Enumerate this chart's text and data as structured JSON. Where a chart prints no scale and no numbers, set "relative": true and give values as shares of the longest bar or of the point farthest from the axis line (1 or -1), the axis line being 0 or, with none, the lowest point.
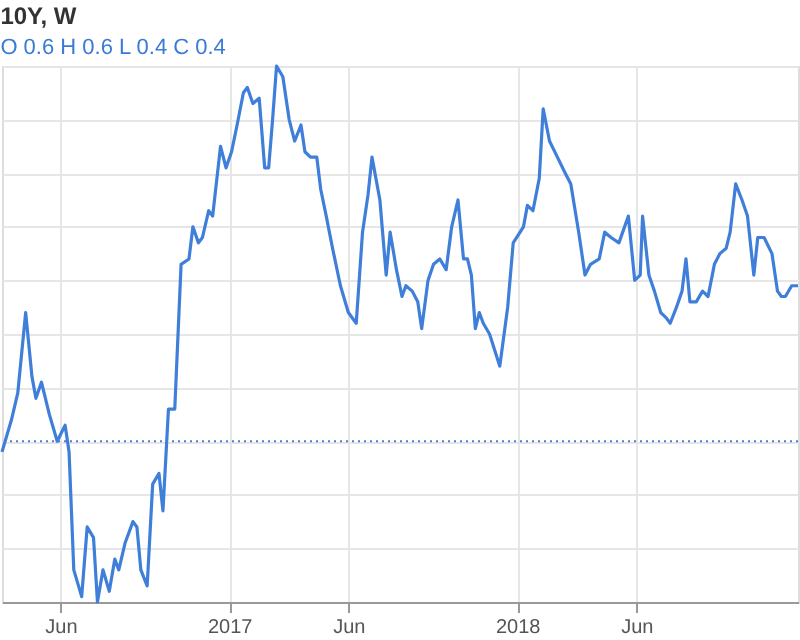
{
  "chart_data": {
    "type": "line",
    "title": "10Y, W",
    "annotations": [
      "O 0.6 H 0.6 L 0.4 C 0.4"
    ],
    "relative": true,
    "grid": true,
    "marker": "none",
    "line_style": "solid",
    "xlim": [
      "2016-03-19",
      "2018-12-23"
    ],
    "xticks": [
      {
        "value": "2016-06-01",
        "label": "Jun"
      },
      {
        "value": "2017-01-01",
        "label": "2017"
      },
      {
        "value": "2017-06-01",
        "label": "Jun"
      },
      {
        "value": "2018-01-01",
        "label": "2018"
      },
      {
        "value": "2018-06-01",
        "label": "Jun"
      }
    ],
    "ref_lines": [
      {
        "axis": "y",
        "value": 0.3,
        "label": null,
        "color": "#4a7fd6",
        "line_style": "dotted"
      }
    ],
    "series": [
      {
        "color": "#3f7fd9",
        "x": [
          "2016-03-19",
          "2016-03-31",
          "2016-04-08",
          "2016-04-18",
          "2016-04-26",
          "2016-05-01",
          "2016-05-08",
          "2016-05-18",
          "2016-05-28",
          "2016-06-07",
          "2016-06-12",
          "2016-06-18",
          "2016-06-28",
          "2016-07-05",
          "2016-07-13",
          "2016-07-18",
          "2016-07-25",
          "2016-08-02",
          "2016-08-09",
          "2016-08-14",
          "2016-08-22",
          "2016-09-01",
          "2016-09-06",
          "2016-09-11",
          "2016-09-19",
          "2016-09-26",
          "2016-10-04",
          "2016-10-09",
          "2016-10-16",
          "2016-10-24",
          "2016-11-01",
          "2016-11-11",
          "2016-11-16",
          "2016-11-23",
          "2016-11-28",
          "2016-12-06",
          "2016-12-11",
          "2016-12-21",
          "2016-12-28",
          "2017-01-04",
          "2017-01-11",
          "2017-01-19",
          "2017-01-24",
          "2017-01-31",
          "2017-02-08",
          "2017-02-15",
          "2017-02-20",
          "2017-02-25",
          "2017-03-02",
          "2017-03-10",
          "2017-03-18",
          "2017-03-25",
          "2017-04-02",
          "2017-04-07",
          "2017-04-14",
          "2017-04-22",
          "2017-04-27",
          "2017-05-04",
          "2017-05-12",
          "2017-05-22",
          "2017-06-01",
          "2017-06-11",
          "2017-06-19",
          "2017-06-26",
          "2017-07-01",
          "2017-07-11",
          "2017-07-19",
          "2017-07-24",
          "2017-08-01",
          "2017-08-08",
          "2017-08-13",
          "2017-08-21",
          "2017-08-28",
          "2017-09-02",
          "2017-09-10",
          "2017-09-17",
          "2017-09-25",
          "2017-10-03",
          "2017-10-10",
          "2017-10-18",
          "2017-10-25",
          "2017-10-30",
          "2017-11-04",
          "2017-11-09",
          "2017-11-14",
          "2017-11-19",
          "2017-11-27",
          "2017-12-10",
          "2017-12-20",
          "2017-12-27",
          "2018-01-09",
          "2018-01-14",
          "2018-01-21",
          "2018-01-29",
          "2018-02-03",
          "2018-02-11",
          "2018-02-21",
          "2018-03-03",
          "2018-03-10",
          "2018-03-20",
          "2018-03-28",
          "2018-04-04",
          "2018-04-15",
          "2018-04-22",
          "2018-04-30",
          "2018-05-10",
          "2018-05-22",
          "2018-05-30",
          "2018-06-06",
          "2018-06-09",
          "2018-06-17",
          "2018-06-24",
          "2018-07-02",
          "2018-07-09",
          "2018-07-14",
          "2018-07-22",
          "2018-07-29",
          "2018-08-03",
          "2018-08-08",
          "2018-08-16",
          "2018-08-24",
          "2018-08-31",
          "2018-09-08",
          "2018-09-15",
          "2018-09-23",
          "2018-09-28",
          "2018-10-05",
          "2018-10-13",
          "2018-10-20",
          "2018-10-28",
          "2018-11-02",
          "2018-11-10",
          "2018-11-20",
          "2018-11-27",
          "2018-12-02",
          "2018-12-07",
          "2018-12-15",
          "2018-12-23"
        ],
        "values": [
          0.28,
          0.34,
          0.39,
          0.54,
          0.42,
          0.38,
          0.41,
          0.35,
          0.3,
          0.33,
          0.28,
          0.06,
          0.01,
          0.14,
          0.12,
          0.0,
          0.06,
          0.02,
          0.08,
          0.06,
          0.11,
          0.15,
          0.14,
          0.06,
          0.03,
          0.22,
          0.24,
          0.17,
          0.36,
          0.36,
          0.63,
          0.64,
          0.7,
          0.67,
          0.68,
          0.73,
          0.72,
          0.85,
          0.81,
          0.84,
          0.89,
          0.95,
          0.96,
          0.93,
          0.94,
          0.81,
          0.81,
          0.9,
          1.0,
          0.98,
          0.9,
          0.86,
          0.89,
          0.84,
          0.83,
          0.83,
          0.77,
          0.72,
          0.66,
          0.59,
          0.54,
          0.52,
          0.69,
          0.76,
          0.83,
          0.75,
          0.61,
          0.69,
          0.62,
          0.57,
          0.59,
          0.58,
          0.56,
          0.51,
          0.6,
          0.63,
          0.64,
          0.62,
          0.7,
          0.75,
          0.64,
          0.64,
          0.61,
          0.51,
          0.54,
          0.52,
          0.5,
          0.44,
          0.55,
          0.67,
          0.7,
          0.74,
          0.73,
          0.79,
          0.92,
          0.86,
          0.83,
          0.8,
          0.78,
          0.69,
          0.61,
          0.63,
          0.64,
          0.69,
          0.68,
          0.67,
          0.72,
          0.6,
          0.61,
          0.72,
          0.61,
          0.58,
          0.54,
          0.53,
          0.52,
          0.55,
          0.58,
          0.64,
          0.56,
          0.56,
          0.58,
          0.57,
          0.63,
          0.65,
          0.66,
          0.69,
          0.78,
          0.75,
          0.72,
          0.61,
          0.68,
          0.68,
          0.65,
          0.58,
          0.57,
          0.57,
          0.59,
          0.59
        ]
      }
    ]
  }
}
